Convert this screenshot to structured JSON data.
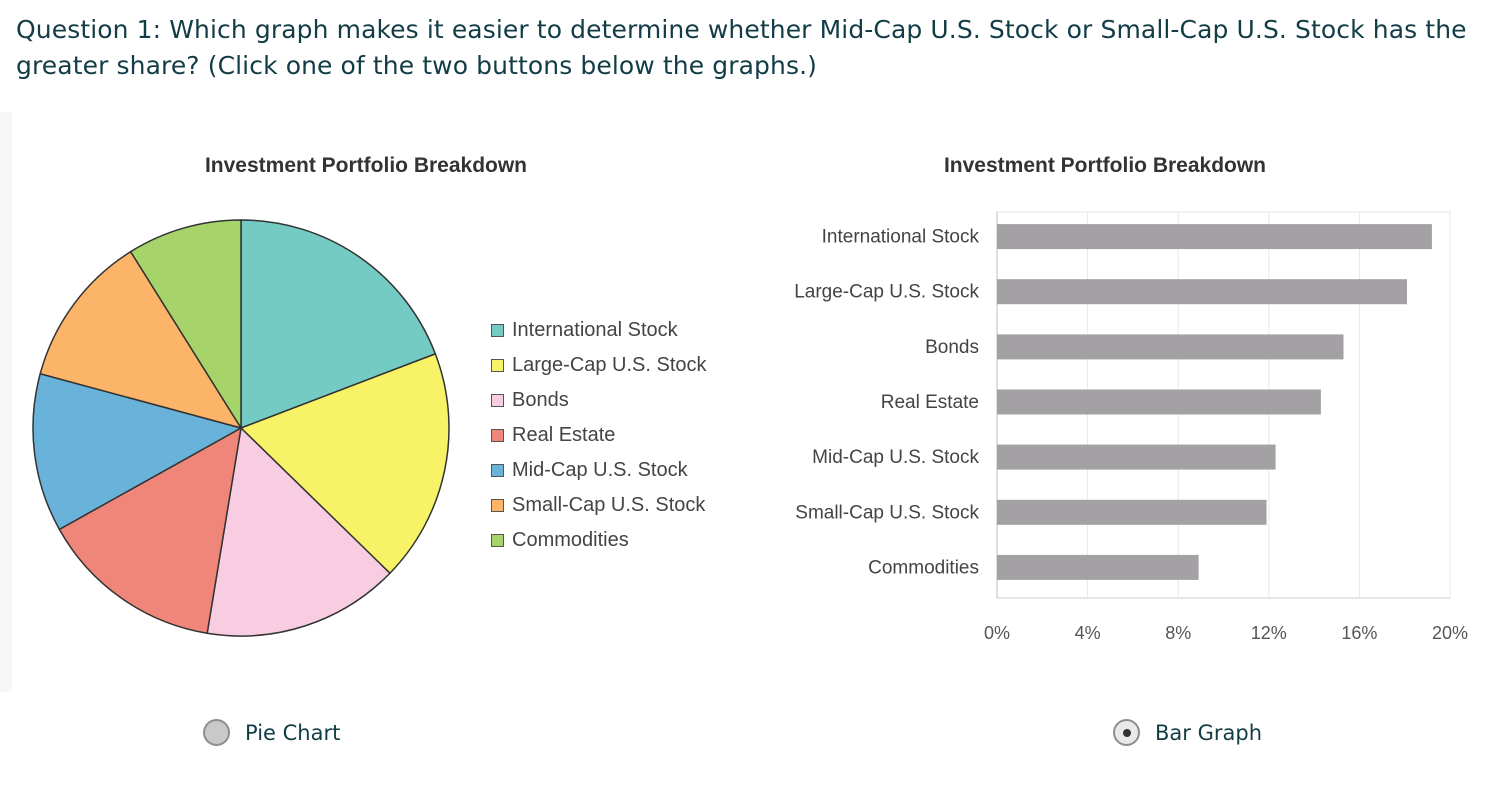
{
  "question": {
    "text": "Question 1: Which graph makes it easier to determine whether Mid-Cap U.S. Stock or Small-Cap U.S. Stock has the greater share? (Click one of the two buttons below the graphs.)"
  },
  "options": [
    {
      "label": "Pie Chart",
      "selected": false
    },
    {
      "label": "Bar Graph",
      "selected": true
    }
  ],
  "chart_data": [
    {
      "type": "pie",
      "title": "Investment Portfolio Breakdown",
      "categories": [
        "International Stock",
        "Large-Cap U.S. Stock",
        "Bonds",
        "Real Estate",
        "Mid-Cap U.S. Stock",
        "Small-Cap U.S. Stock",
        "Commodities"
      ],
      "values": [
        19.2,
        18.1,
        15.3,
        14.3,
        12.3,
        11.9,
        8.9
      ],
      "colors": [
        "#73cbc3",
        "#f8f267",
        "#f8cde1",
        "#f08579",
        "#69b2d9",
        "#fcb468",
        "#a7d46a"
      ],
      "legend": "right"
    },
    {
      "type": "bar",
      "orientation": "horizontal",
      "title": "Investment Portfolio Breakdown",
      "categories": [
        "International Stock",
        "Large-Cap U.S. Stock",
        "Bonds",
        "Real Estate",
        "Mid-Cap U.S. Stock",
        "Small-Cap U.S. Stock",
        "Commodities"
      ],
      "values": [
        19.2,
        18.1,
        15.3,
        14.3,
        12.3,
        11.9,
        8.9
      ],
      "xlim": [
        0,
        20
      ],
      "xticks": [
        "0%",
        "4%",
        "8%",
        "12%",
        "16%",
        "20%"
      ],
      "bar_color": "#a3a1a3",
      "grid": true
    }
  ]
}
